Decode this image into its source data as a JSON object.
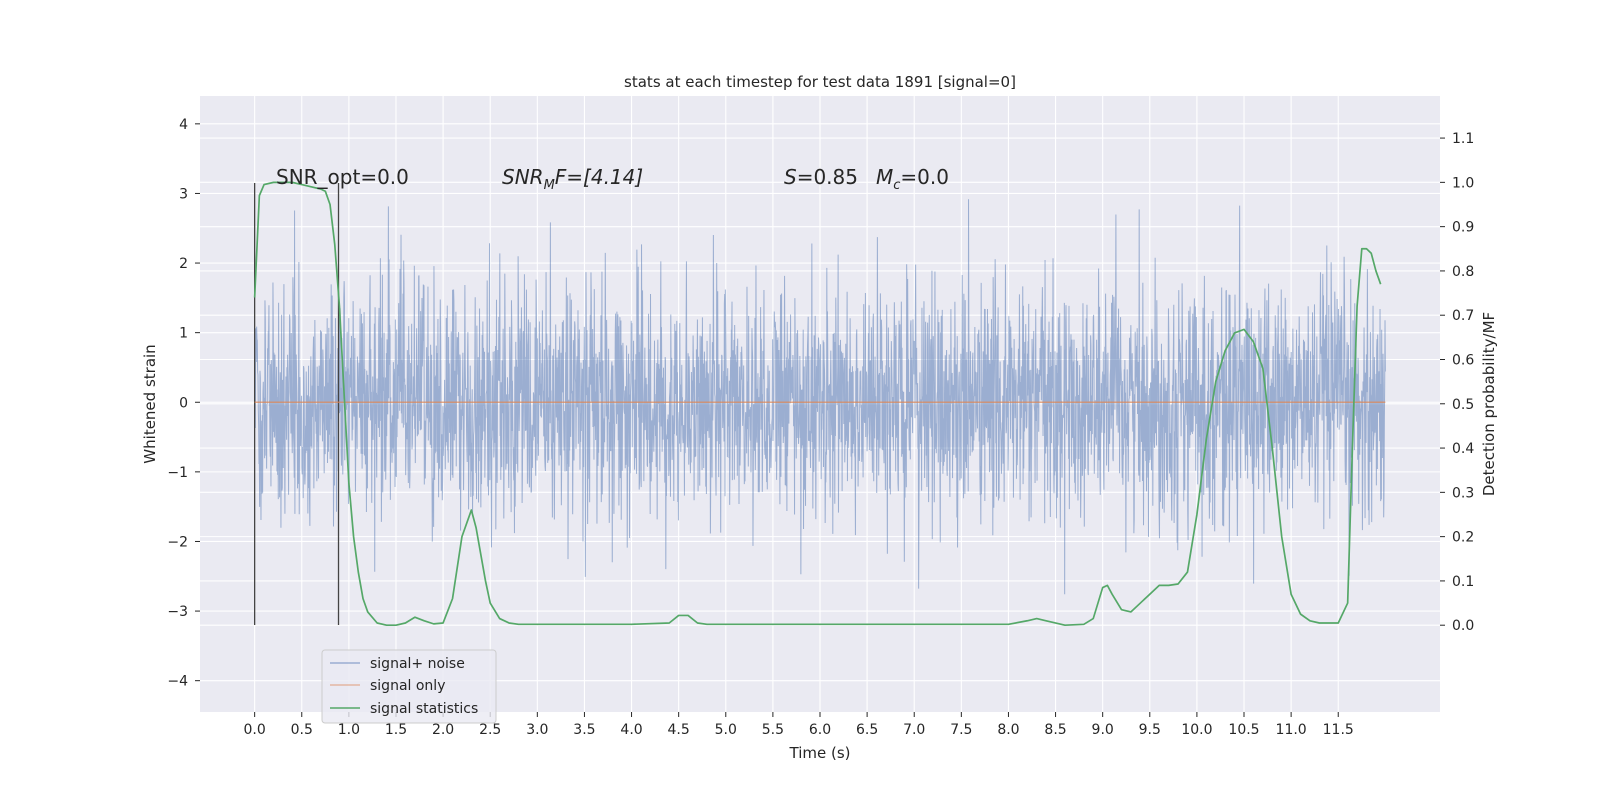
{
  "chart_data": {
    "type": "line",
    "title": "stats at each timestep for test data 1891 [signal=0]",
    "xlabel": "Time (s)",
    "ylabel": "Whitened strain",
    "y2label": "Detection probability/MF",
    "xlim": [
      -0.58,
      12.58
    ],
    "ylim": [
      -4.45,
      4.4
    ],
    "y2lim": [
      -0.196,
      1.195
    ],
    "x_ticks": [
      0.0,
      0.5,
      1.0,
      1.5,
      2.0,
      2.5,
      3.0,
      3.5,
      4.0,
      4.5,
      5.0,
      5.5,
      6.0,
      6.5,
      7.0,
      7.5,
      8.0,
      8.5,
      9.0,
      9.5,
      10.0,
      10.5,
      11.0,
      11.5
    ],
    "x_tick_labels": [
      "0.0",
      "0.5",
      "1.0",
      "1.5",
      "2.0",
      "2.5",
      "3.0",
      "3.5",
      "4.0",
      "4.5",
      "5.0",
      "5.5",
      "6.0",
      "6.5",
      "7.0",
      "7.5",
      "8.0",
      "8.5",
      "9.0",
      "9.5",
      "10.0",
      "10.5",
      "11.0",
      "11.5"
    ],
    "y_ticks": [
      -4,
      -3,
      -2,
      -1,
      0,
      1,
      2,
      3,
      4
    ],
    "y_tick_labels": [
      "−4",
      "−3",
      "−2",
      "−1",
      "0",
      "1",
      "2",
      "3",
      "4"
    ],
    "y2_ticks": [
      0.0,
      0.1,
      0.2,
      0.3,
      0.4,
      0.5,
      0.6,
      0.7,
      0.8,
      0.9,
      1.0,
      1.1
    ],
    "y2_tick_labels": [
      "0.0",
      "0.1",
      "0.2",
      "0.3",
      "0.4",
      "0.5",
      "0.6",
      "0.7",
      "0.8",
      "0.9",
      "1.0",
      "1.1"
    ],
    "grid": true,
    "legend_position": "lower-left",
    "annotations": {
      "snr_opt": "SNR_opt=0.0",
      "snr_mf_symbol": "SNR",
      "snr_mf_sub": "M",
      "snr_mf_rest": "F=[4.14]",
      "s_symbol": "S",
      "s_value": "=0.85",
      "mc_symbol": "M",
      "mc_sub": "c",
      "mc_value": "=0.0"
    },
    "vertical_lines": [
      0.0,
      0.89
    ],
    "series": [
      {
        "name": "signal+ noise",
        "color": "#4c72b0",
        "axis": "left",
        "style": "noise-band",
        "x_range": [
          0.0,
          12.0
        ],
        "typical_band": [
          -1.8,
          1.85
        ],
        "peak_range": [
          -3.7,
          4.0
        ]
      },
      {
        "name": "signal only",
        "color": "#dd8452",
        "axis": "left",
        "x": [
          0.0,
          12.0
        ],
        "values": [
          0.0,
          0.0
        ]
      },
      {
        "name": "signal statistics",
        "color": "#55a868",
        "axis": "right",
        "x": [
          0.0,
          0.05,
          0.1,
          0.2,
          0.3,
          0.4,
          0.5,
          0.6,
          0.7,
          0.75,
          0.8,
          0.85,
          0.9,
          0.95,
          1.0,
          1.05,
          1.1,
          1.15,
          1.2,
          1.3,
          1.4,
          1.5,
          1.6,
          1.7,
          1.8,
          1.9,
          2.0,
          2.1,
          2.2,
          2.3,
          2.35,
          2.4,
          2.45,
          2.5,
          2.6,
          2.7,
          2.8,
          3.0,
          4.0,
          4.4,
          4.5,
          4.6,
          4.7,
          4.8,
          5.0,
          6.0,
          7.0,
          8.0,
          8.2,
          8.3,
          8.4,
          8.6,
          8.8,
          8.9,
          9.0,
          9.05,
          9.1,
          9.2,
          9.3,
          9.4,
          9.5,
          9.6,
          9.7,
          9.8,
          9.9,
          10.0,
          10.1,
          10.2,
          10.3,
          10.4,
          10.5,
          10.6,
          10.7,
          10.8,
          10.9,
          11.0,
          11.1,
          11.2,
          11.3,
          11.5,
          11.6,
          11.65,
          11.7,
          11.75,
          11.8,
          11.85,
          11.9,
          11.95
        ],
        "values": [
          0.74,
          0.97,
          0.995,
          1.0,
          1.0,
          1.0,
          0.995,
          0.99,
          0.985,
          0.98,
          0.95,
          0.86,
          0.72,
          0.52,
          0.32,
          0.2,
          0.12,
          0.06,
          0.03,
          0.005,
          0.0,
          0.0,
          0.005,
          0.018,
          0.01,
          0.003,
          0.005,
          0.06,
          0.2,
          0.26,
          0.22,
          0.16,
          0.1,
          0.05,
          0.015,
          0.005,
          0.002,
          0.002,
          0.002,
          0.005,
          0.022,
          0.022,
          0.005,
          0.002,
          0.002,
          0.002,
          0.002,
          0.002,
          0.01,
          0.015,
          0.01,
          0.0,
          0.002,
          0.015,
          0.085,
          0.09,
          0.07,
          0.035,
          0.03,
          0.05,
          0.07,
          0.09,
          0.09,
          0.093,
          0.12,
          0.25,
          0.42,
          0.55,
          0.62,
          0.66,
          0.668,
          0.64,
          0.58,
          0.4,
          0.2,
          0.07,
          0.025,
          0.01,
          0.005,
          0.005,
          0.05,
          0.4,
          0.72,
          0.85,
          0.85,
          0.84,
          0.8,
          0.77
        ]
      }
    ]
  }
}
